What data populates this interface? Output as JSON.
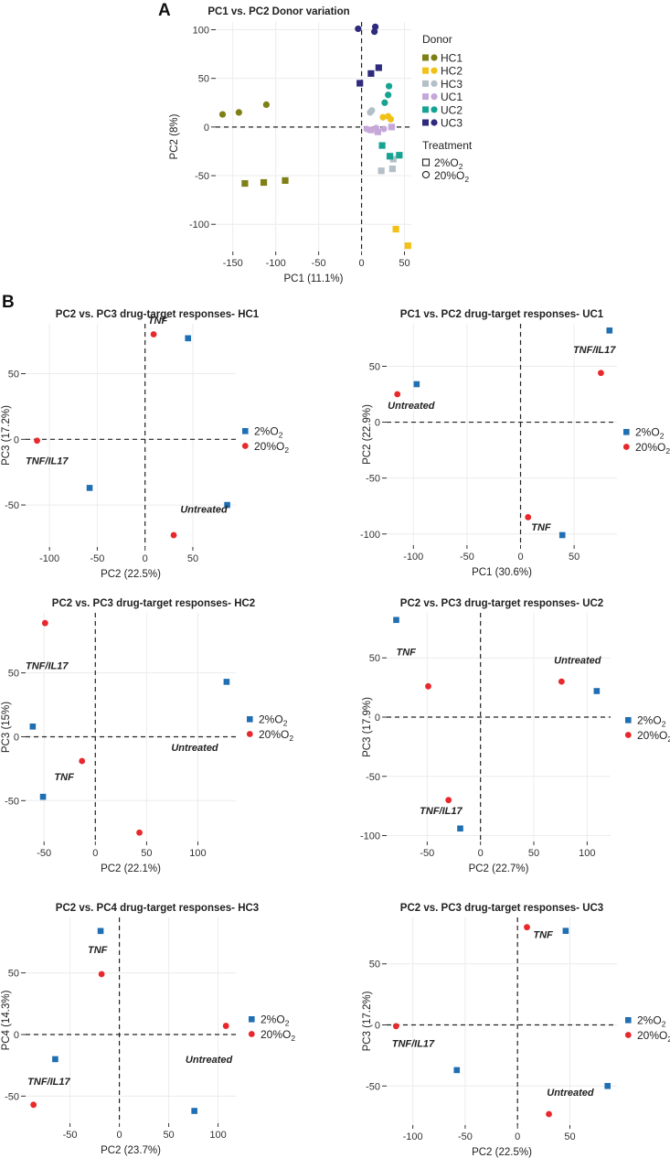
{
  "panel_labels": {
    "a": "A",
    "b": "B"
  },
  "legend": {
    "donor_title": "Donor",
    "treatment_title": "Treatment",
    "o2_prefix": "%O",
    "o2_sub": "2",
    "o2_low": "2",
    "o2_high": "20",
    "colors": {
      "2": "#1f6fb2",
      "20": "#e8282b"
    }
  },
  "chart_data": [
    {
      "id": "A",
      "type": "scatter",
      "title": "PC1 vs. PC2 Donor variation",
      "xlabel": "PC1 (11.1%)",
      "ylabel": "PC2 (8%)",
      "xticks": [
        -150,
        -100,
        -50,
        0,
        50
      ],
      "yticks": [
        -100,
        -50,
        0,
        50,
        100
      ],
      "xlim": [
        -170,
        58
      ],
      "ylim": [
        -128,
        108
      ],
      "donors": [
        {
          "name": "HC1",
          "color": "#7e8016"
        },
        {
          "name": "HC2",
          "color": "#f1c117"
        },
        {
          "name": "HC3",
          "color": "#b3c0c7"
        },
        {
          "name": "UC1",
          "color": "#c5a8d9"
        },
        {
          "name": "UC2",
          "color": "#16a392"
        },
        {
          "name": "UC3",
          "color": "#2e2a7c"
        }
      ],
      "points": [
        {
          "donor": "HC1",
          "shape": "circle",
          "x": -162,
          "y": 13
        },
        {
          "donor": "HC1",
          "shape": "circle",
          "x": -143,
          "y": 15
        },
        {
          "donor": "HC1",
          "shape": "circle",
          "x": -111,
          "y": 23
        },
        {
          "donor": "HC1",
          "shape": "square",
          "x": -136,
          "y": -58
        },
        {
          "donor": "HC1",
          "shape": "square",
          "x": -114,
          "y": -57
        },
        {
          "donor": "HC1",
          "shape": "square",
          "x": -89,
          "y": -55
        },
        {
          "donor": "HC2",
          "shape": "circle",
          "x": 25,
          "y": 10
        },
        {
          "donor": "HC2",
          "shape": "circle",
          "x": 31,
          "y": 11
        },
        {
          "donor": "HC2",
          "shape": "circle",
          "x": 34,
          "y": 8
        },
        {
          "donor": "HC2",
          "shape": "square",
          "x": 40,
          "y": -105
        },
        {
          "donor": "HC2",
          "shape": "square",
          "x": 54,
          "y": -122
        },
        {
          "donor": "HC3",
          "shape": "circle",
          "x": 10,
          "y": 15
        },
        {
          "donor": "HC3",
          "shape": "circle",
          "x": 12,
          "y": 17
        },
        {
          "donor": "HC3",
          "shape": "square",
          "x": 23,
          "y": -45
        },
        {
          "donor": "HC3",
          "shape": "square",
          "x": 36,
          "y": -43
        },
        {
          "donor": "HC3",
          "shape": "square",
          "x": 37,
          "y": -33
        },
        {
          "donor": "UC1",
          "shape": "circle",
          "x": 6,
          "y": -2
        },
        {
          "donor": "UC1",
          "shape": "circle",
          "x": 17,
          "y": -1
        },
        {
          "donor": "UC1",
          "shape": "circle",
          "x": 26,
          "y": -2
        },
        {
          "donor": "UC1",
          "shape": "square",
          "x": 11,
          "y": -3
        },
        {
          "donor": "UC1",
          "shape": "square",
          "x": 19,
          "y": -5
        },
        {
          "donor": "UC1",
          "shape": "square",
          "x": 35,
          "y": 0
        },
        {
          "donor": "UC2",
          "shape": "circle",
          "x": 27,
          "y": 25
        },
        {
          "donor": "UC2",
          "shape": "circle",
          "x": 31,
          "y": 33
        },
        {
          "donor": "UC2",
          "shape": "circle",
          "x": 32,
          "y": 42
        },
        {
          "donor": "UC2",
          "shape": "square",
          "x": 24,
          "y": -19
        },
        {
          "donor": "UC2",
          "shape": "square",
          "x": 33,
          "y": -30
        },
        {
          "donor": "UC2",
          "shape": "square",
          "x": 44,
          "y": -29
        },
        {
          "donor": "UC3",
          "shape": "circle",
          "x": -4,
          "y": 101
        },
        {
          "donor": "UC3",
          "shape": "circle",
          "x": 15,
          "y": 98
        },
        {
          "donor": "UC3",
          "shape": "circle",
          "x": 16,
          "y": 103
        },
        {
          "donor": "UC3",
          "shape": "square",
          "x": -2,
          "y": 45
        },
        {
          "donor": "UC3",
          "shape": "square",
          "x": 11,
          "y": 55
        },
        {
          "donor": "UC3",
          "shape": "square",
          "x": 20,
          "y": 61
        }
      ]
    },
    {
      "id": "HC1",
      "type": "scatter",
      "title": "PC2 vs. PC3 drug-target responses- HC1",
      "xlabel": "PC2 (22.5%)",
      "ylabel": "PC3 (17.2%)",
      "xticks": [
        -100,
        -50,
        0,
        50
      ],
      "yticks": [
        -50,
        0,
        50
      ],
      "xlim": [
        -125,
        95
      ],
      "ylim": [
        -82,
        88
      ],
      "points": [
        {
          "o2": "2",
          "x": 45,
          "y": 77
        },
        {
          "o2": "2",
          "x": -58,
          "y": -37
        },
        {
          "o2": "2",
          "x": 86,
          "y": -50
        },
        {
          "o2": "20",
          "x": 9,
          "y": 80
        },
        {
          "o2": "20",
          "x": -113,
          "y": -1
        },
        {
          "o2": "20",
          "x": 30,
          "y": -73
        }
      ],
      "labels": [
        {
          "text": "TNF",
          "x": 3,
          "y": 88
        },
        {
          "text": "TNF/IL17",
          "x": -125,
          "y": -19
        },
        {
          "text": "Untreated",
          "x": 37,
          "y": -56
        }
      ]
    },
    {
      "id": "UC1",
      "type": "scatter",
      "title": "PC1 vs. PC2 drug-target responses- UC1",
      "xlabel": "PC1 (30.6%)",
      "ylabel": "PC2 (22.9%)",
      "xticks": [
        -100,
        -50,
        0,
        50
      ],
      "yticks": [
        -100,
        -50,
        0,
        50
      ],
      "xlim": [
        -125,
        90
      ],
      "ylim": [
        -110,
        88
      ],
      "points": [
        {
          "o2": "2",
          "x": 83,
          "y": 82
        },
        {
          "o2": "2",
          "x": -97,
          "y": 34
        },
        {
          "o2": "2",
          "x": 39,
          "y": -101
        },
        {
          "o2": "20",
          "x": 75,
          "y": 44
        },
        {
          "o2": "20",
          "x": -115,
          "y": 25
        },
        {
          "o2": "20",
          "x": 7,
          "y": -85
        }
      ],
      "labels": [
        {
          "text": "TNF/IL17",
          "x": 49,
          "y": 62
        },
        {
          "text": "Untreated",
          "x": -124,
          "y": 12
        },
        {
          "text": "TNF",
          "x": 10,
          "y": -97
        }
      ]
    },
    {
      "id": "HC2",
      "type": "scatter",
      "title": "PC2 vs. PC3 drug-target responses- HC2",
      "xlabel": "PC2 (22.1%)",
      "ylabel": "PC3 (15%)",
      "xticks": [
        -50,
        0,
        50,
        100
      ],
      "yticks": [
        -50,
        0,
        50
      ],
      "xlim": [
        -68,
        137
      ],
      "ylim": [
        -82,
        97
      ],
      "points": [
        {
          "o2": "2",
          "x": 128,
          "y": 43
        },
        {
          "o2": "2",
          "x": -61,
          "y": 8
        },
        {
          "o2": "2",
          "x": -51,
          "y": -47
        },
        {
          "o2": "20",
          "x": -49,
          "y": 89
        },
        {
          "o2": "20",
          "x": -13,
          "y": -19
        },
        {
          "o2": "20",
          "x": 43,
          "y": -75
        }
      ],
      "labels": [
        {
          "text": "TNF/IL17",
          "x": -68,
          "y": 53
        },
        {
          "text": "Untreated",
          "x": 74,
          "y": -11
        },
        {
          "text": "TNF",
          "x": -40,
          "y": -34
        }
      ]
    },
    {
      "id": "UC2",
      "type": "scatter",
      "title": "PC2 vs. PC3 drug-target responses- UC2",
      "xlabel": "PC2 (22.7%)",
      "ylabel": "PC3 (17.9%)",
      "xticks": [
        -50,
        0,
        50,
        100
      ],
      "yticks": [
        -100,
        -50,
        0,
        50
      ],
      "xlim": [
        -88,
        122
      ],
      "ylim": [
        -105,
        88
      ],
      "points": [
        {
          "o2": "2",
          "x": -79,
          "y": 82
        },
        {
          "o2": "2",
          "x": 109,
          "y": 22
        },
        {
          "o2": "2",
          "x": -19,
          "y": -94
        },
        {
          "o2": "20",
          "x": -49,
          "y": 26
        },
        {
          "o2": "20",
          "x": 76,
          "y": 30
        },
        {
          "o2": "20",
          "x": -30,
          "y": -70
        }
      ],
      "labels": [
        {
          "text": "TNF",
          "x": -79,
          "y": 52
        },
        {
          "text": "Untreated",
          "x": 69,
          "y": 45
        },
        {
          "text": "TNF/IL17",
          "x": -57,
          "y": -82
        }
      ]
    },
    {
      "id": "HC3",
      "type": "scatter",
      "title": "PC2 vs. PC4 drug-target responses- HC3",
      "xlabel": "PC2 (23.7%)",
      "ylabel": "PC4 (14.3%)",
      "xticks": [
        -50,
        0,
        50,
        100
      ],
      "yticks": [
        -50,
        0,
        50
      ],
      "xlim": [
        -95,
        118
      ],
      "ylim": [
        -72,
        95
      ],
      "points": [
        {
          "o2": "2",
          "x": -19,
          "y": 84
        },
        {
          "o2": "2",
          "x": -65,
          "y": -20
        },
        {
          "o2": "2",
          "x": 76,
          "y": -62
        },
        {
          "o2": "20",
          "x": -18,
          "y": 49
        },
        {
          "o2": "20",
          "x": 108,
          "y": 7
        },
        {
          "o2": "20",
          "x": -87,
          "y": -57
        }
      ],
      "labels": [
        {
          "text": "TNF",
          "x": -32,
          "y": 66
        },
        {
          "text": "Untreated",
          "x": 67,
          "y": -23
        },
        {
          "text": "TNF/IL17",
          "x": -93,
          "y": -41
        }
      ]
    },
    {
      "id": "UC3",
      "type": "scatter",
      "title": "PC2 vs. PC3 drug-target responses- UC3",
      "xlabel": "PC2 (22.5%)",
      "ylabel": "PC3 (17.2%)",
      "xticks": [
        -100,
        -50,
        0,
        50
      ],
      "yticks": [
        -50,
        0,
        50
      ],
      "xlim": [
        -125,
        95
      ],
      "ylim": [
        -82,
        88
      ],
      "points": [
        {
          "o2": "2",
          "x": 46,
          "y": 77
        },
        {
          "o2": "2",
          "x": -58,
          "y": -37
        },
        {
          "o2": "2",
          "x": 86,
          "y": -50
        },
        {
          "o2": "20",
          "x": 9,
          "y": 80
        },
        {
          "o2": "20",
          "x": -116,
          "y": -1
        },
        {
          "o2": "20",
          "x": 30,
          "y": -73
        }
      ],
      "labels": [
        {
          "text": "TNF",
          "x": 15,
          "y": 71
        },
        {
          "text": "TNF/IL17",
          "x": -120,
          "y": -18
        },
        {
          "text": "Untreated",
          "x": 28,
          "y": -58
        }
      ]
    }
  ]
}
